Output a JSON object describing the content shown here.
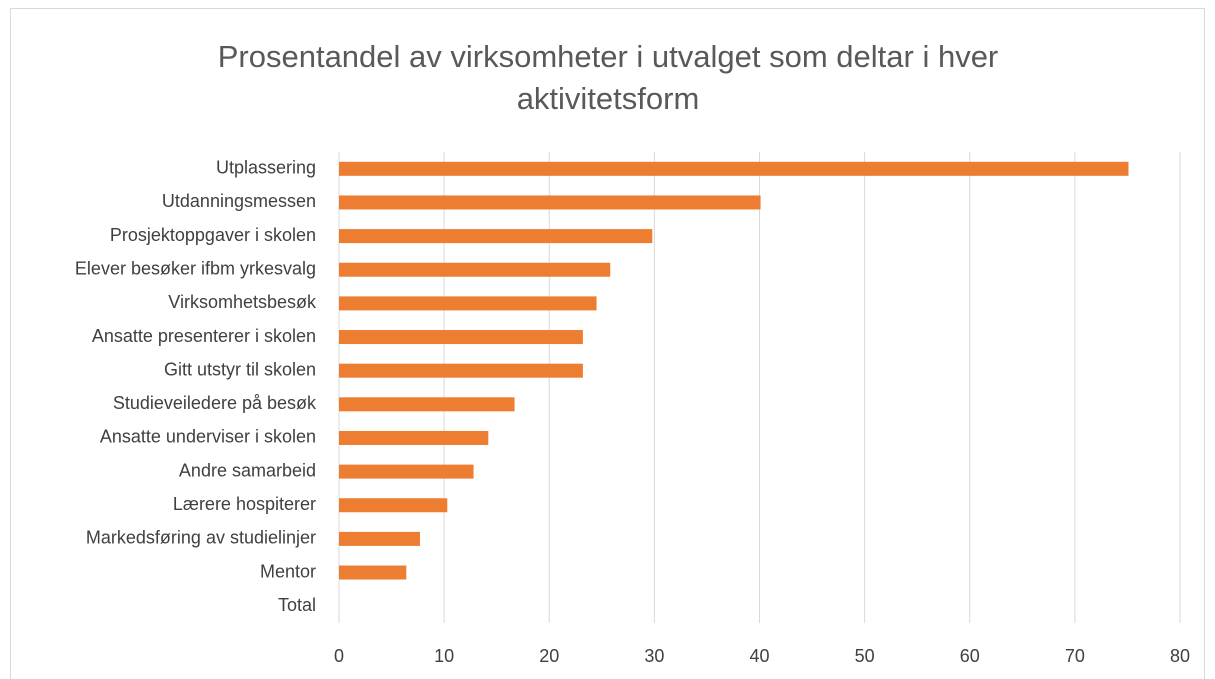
{
  "chart_data": {
    "type": "bar",
    "orientation": "horizontal",
    "title": "Prosentandel av virksomheter i utvalget som deltar i hver aktivitetsform",
    "categories": [
      "Utplassering",
      "Utdanningsmessen",
      "Prosjektoppgaver i skolen",
      "Elever besøker ifbm yrkesvalg",
      "Virksomhetsbesøk",
      "Ansatte presenterer i skolen",
      "Gitt utstyr til skolen",
      "Studieveiledere på besøk",
      "Ansatte underviser i skolen",
      "Andre samarbeid",
      "Lærere hospiterer",
      "Markedsføring av studielinjer",
      "Mentor",
      "Total"
    ],
    "values": [
      75.1,
      40.1,
      29.8,
      25.8,
      24.5,
      23.2,
      23.2,
      16.7,
      14.2,
      12.8,
      10.3,
      7.7,
      6.4,
      null
    ],
    "color": "#ed7d31",
    "xlim": [
      0,
      80
    ],
    "xticks": [
      0,
      10,
      20,
      30,
      40,
      50,
      60,
      70,
      80
    ],
    "grid": true
  }
}
